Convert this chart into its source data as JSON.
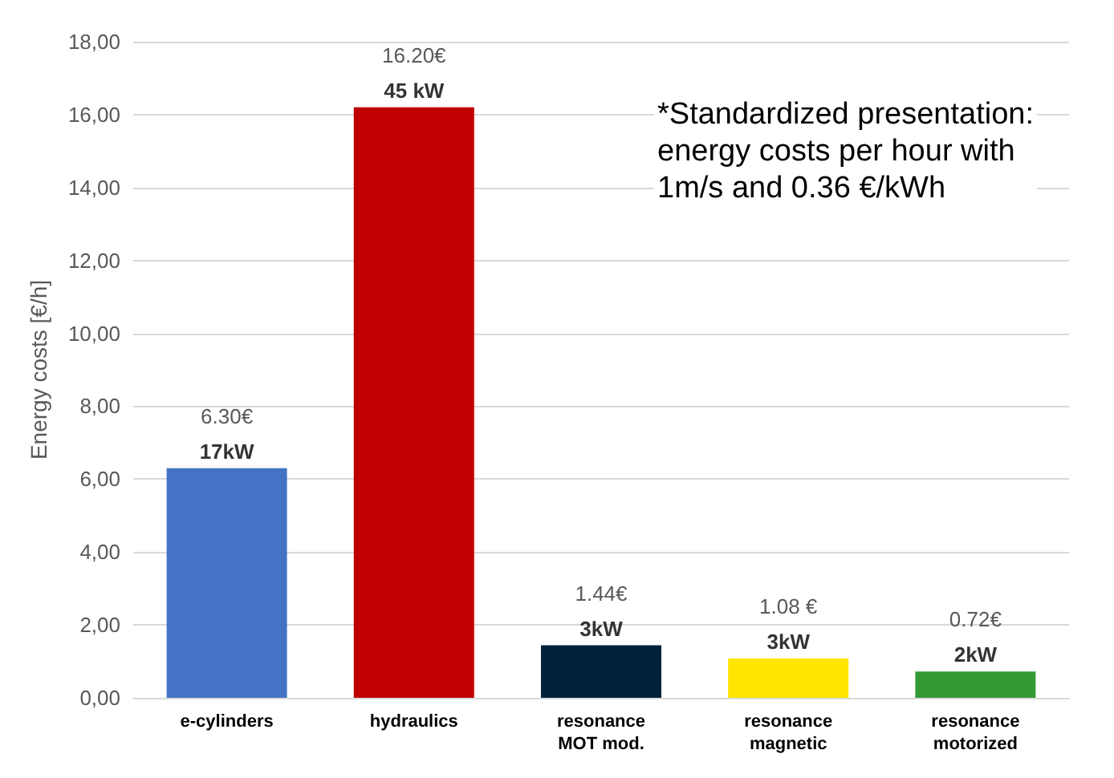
{
  "chart_data": {
    "type": "bar",
    "ylabel": "Energy costs [€/h]",
    "categories": [
      "e-cylinders",
      "hydraulics",
      "resonance\nMOT mod.",
      "resonance\nmagnetic",
      "resonance\nmotorized"
    ],
    "values": [
      6.3,
      16.2,
      1.44,
      1.08,
      0.72
    ],
    "colors": [
      "#4472c4",
      "#c00000",
      "#01233a",
      "#ffe600",
      "#339933"
    ],
    "value_labels": [
      "6.30€",
      "16.20€",
      "1.44€",
      "1.08 €",
      "0.72€"
    ],
    "ylim": [
      0,
      18
    ],
    "yticks": [
      {
        "value": 0,
        "label": "0,00"
      },
      {
        "value": 2,
        "label": "2,00"
      },
      {
        "value": 4,
        "label": "4,00"
      },
      {
        "value": 6,
        "label": "6,00"
      },
      {
        "value": 8,
        "label": "8,00"
      },
      {
        "value": 10,
        "label": "10,00"
      },
      {
        "value": 12,
        "label": "12,00"
      },
      {
        "value": 14,
        "label": "14,00"
      },
      {
        "value": 16,
        "label": "16,00"
      },
      {
        "value": 18,
        "label": "18,00"
      }
    ],
    "grid": "y",
    "annotations": [
      {
        "text": "17kW",
        "x": "e-cylinders",
        "y": 6.3
      },
      {
        "text": "45 kW",
        "x": "hydraulics",
        "y": 16.2
      },
      {
        "text": "3kW",
        "x": "resonance\nMOT mod.",
        "y": 1.44
      },
      {
        "text": "3kW",
        "x": "resonance\nmagnetic",
        "y": 1.08
      },
      {
        "text": "2kW",
        "x": "resonance\nmotorized",
        "y": 0.72
      },
      "*Standardized presentation:\nenergy costs per hour with\n1m/s and 0.36 €/kWh"
    ]
  }
}
